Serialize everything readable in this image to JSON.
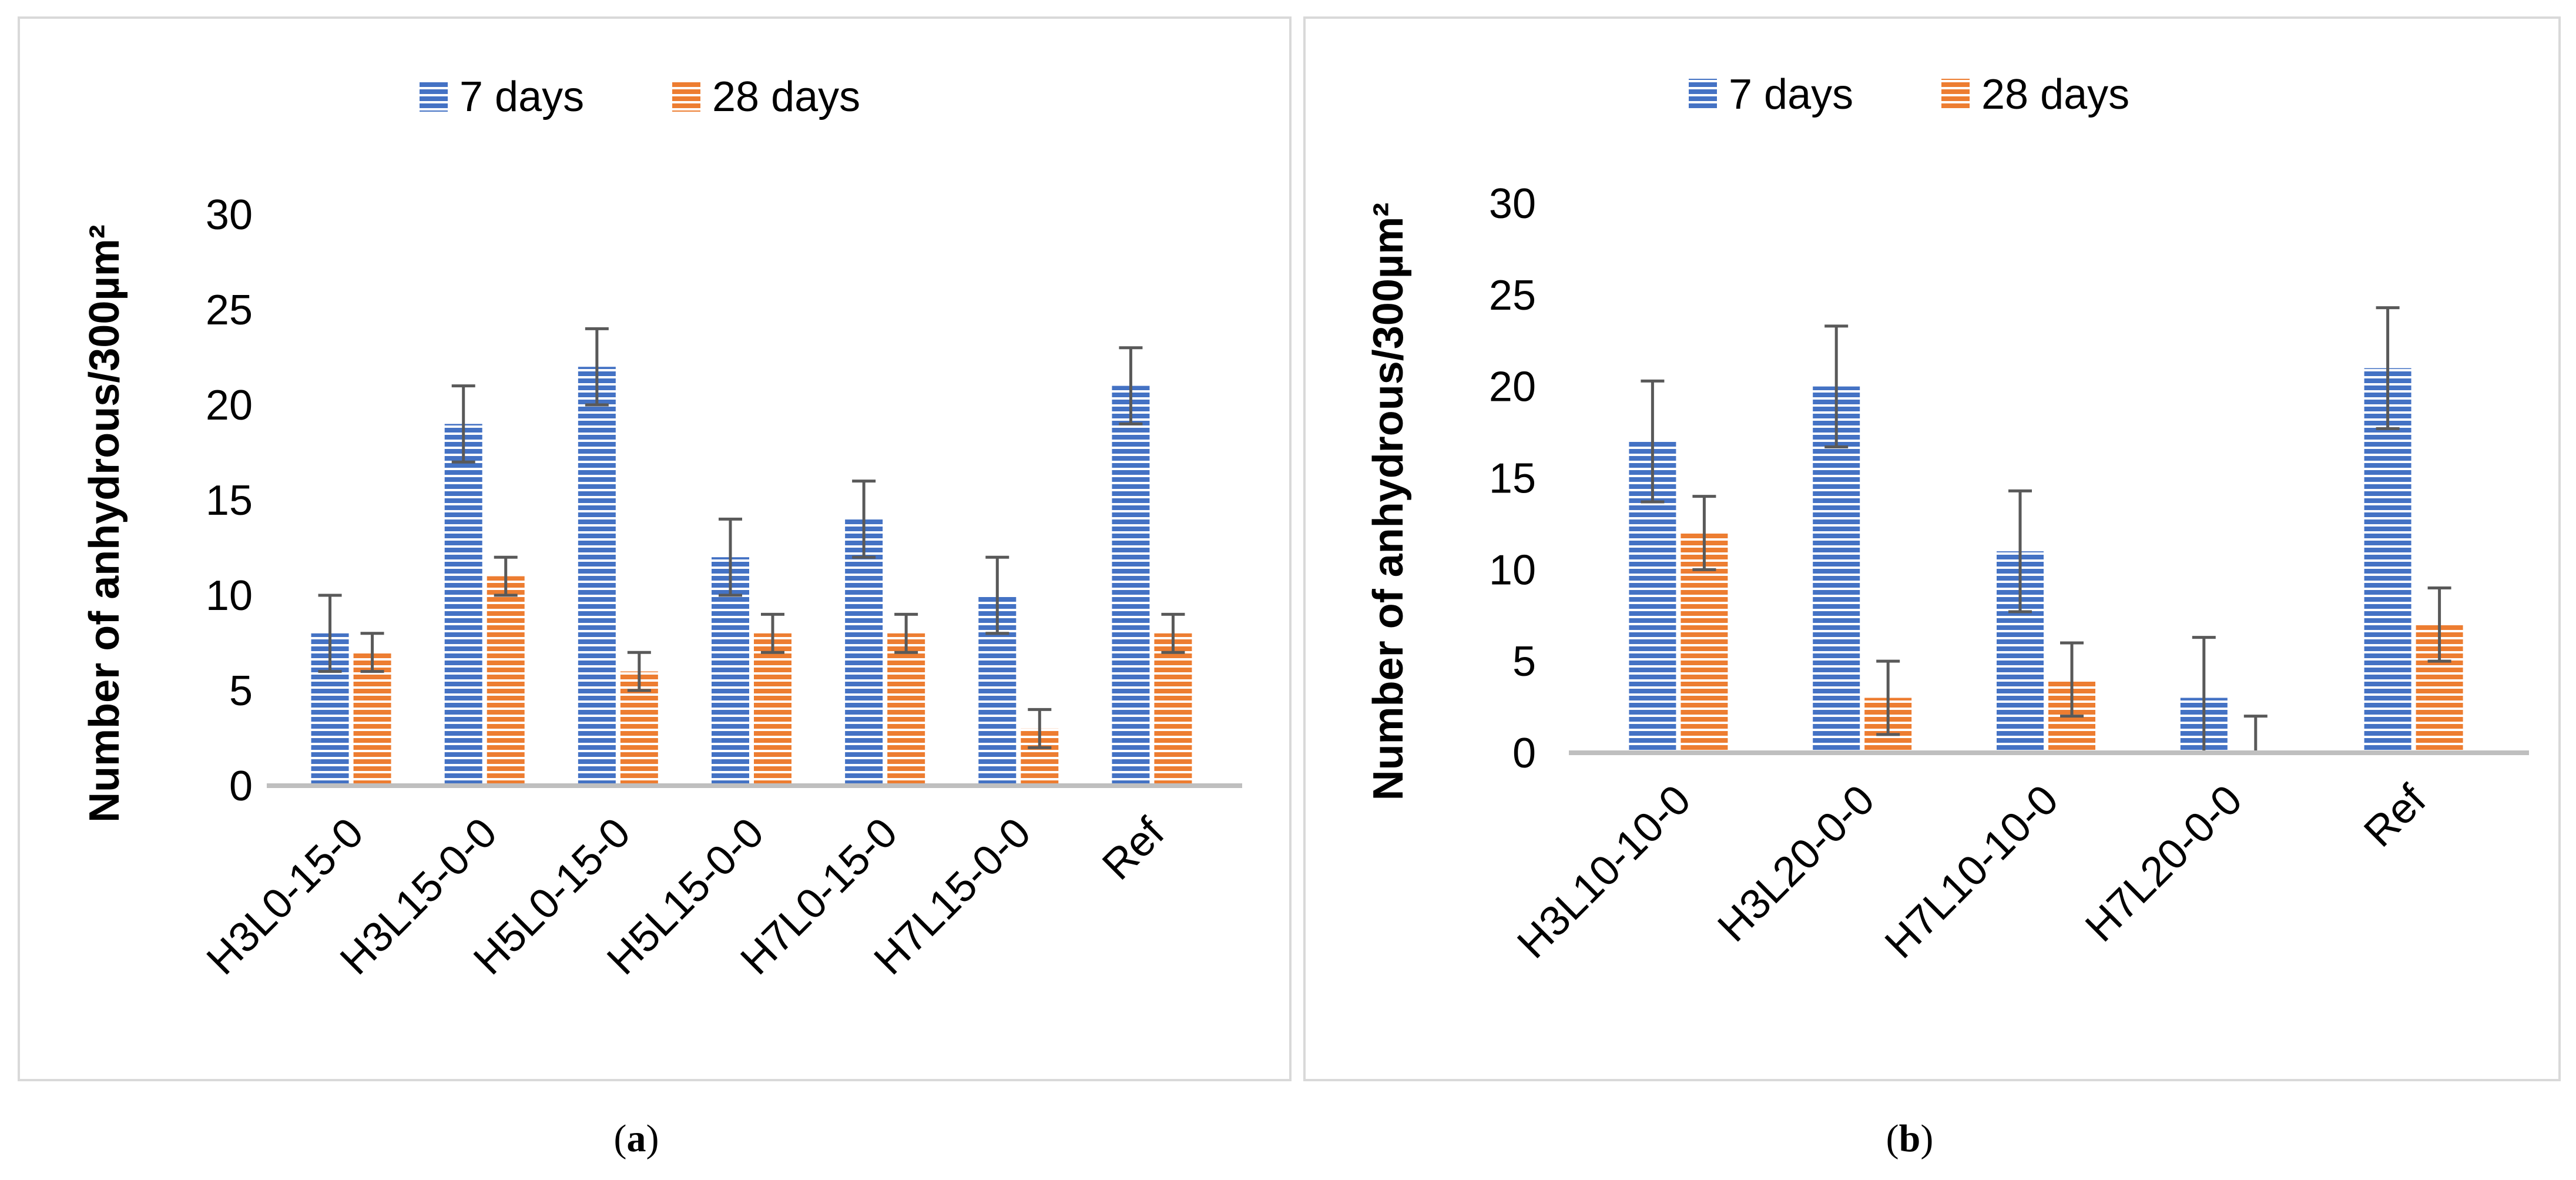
{
  "chart_data": [
    {
      "id": "a",
      "type": "bar",
      "categories": [
        "H3L0-15-0",
        "H3L15-0-0",
        "H5L0-15-0",
        "H5L15-0-0",
        "H7L0-15-0",
        "H7L15-0-0",
        "Ref"
      ],
      "series": [
        {
          "name": "7 days",
          "values": [
            8,
            19,
            22,
            12,
            14,
            10,
            21
          ],
          "errors": [
            2,
            2,
            2,
            2,
            2,
            2,
            2
          ]
        },
        {
          "name": "28 days",
          "values": [
            7,
            11,
            6,
            8,
            8,
            3,
            8
          ],
          "errors": [
            1,
            1,
            1,
            1,
            1,
            1,
            1
          ]
        }
      ],
      "ylabel": "Number of anhydrous/300µm²",
      "ylim": [
        0,
        30
      ],
      "yticks": [
        "0",
        "5",
        "10",
        "15",
        "20",
        "25",
        "30"
      ],
      "legend": "top",
      "grid": false
    },
    {
      "id": "b",
      "type": "bar",
      "categories": [
        "H3L10-10-0",
        "H3L20-0-0",
        "H7L10-10-0",
        "H7L20-0-0",
        "Ref"
      ],
      "series": [
        {
          "name": "7 days",
          "values": [
            17,
            20,
            11,
            3,
            21
          ],
          "errors": [
            3.3,
            3.3,
            3.3,
            3.3,
            3.3
          ]
        },
        {
          "name": "28 days",
          "values": [
            12,
            3,
            4,
            0,
            7
          ],
          "errors": [
            2,
            2,
            2,
            2,
            2
          ]
        }
      ],
      "ylabel": "Number of anhydrous/300µm²",
      "ylim": [
        0,
        30
      ],
      "yticks": [
        "0",
        "5",
        "10",
        "15",
        "20",
        "25",
        "30"
      ],
      "legend": "top",
      "grid": false
    }
  ],
  "captions": {
    "a": "a",
    "b": "b"
  },
  "colors": {
    "series1": "#4472c4",
    "series2": "#ed7d31",
    "axis": "#bfbfbf",
    "error": "#595959"
  }
}
